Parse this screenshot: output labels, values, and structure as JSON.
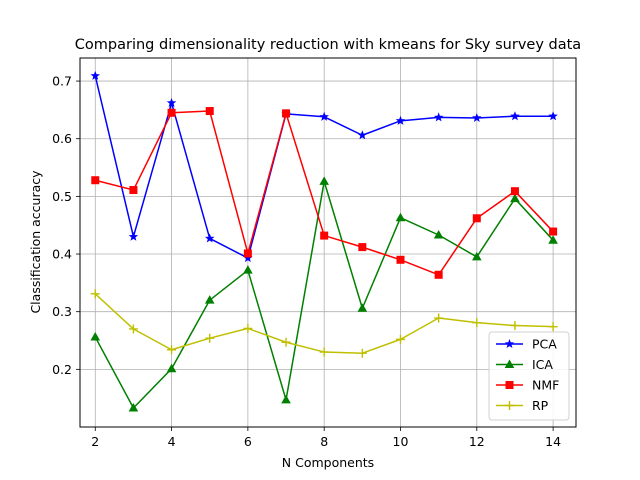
{
  "chart_data": {
    "type": "line",
    "title": "Comparing dimensionality reduction with kmeans for Sky survey data",
    "xlabel": "N Components",
    "ylabel": "Classification accuracy",
    "x": [
      2,
      3,
      4,
      5,
      6,
      7,
      8,
      9,
      10,
      11,
      12,
      13,
      14
    ],
    "xlim": [
      1.6,
      14.6
    ],
    "ylim": [
      0.1,
      0.74
    ],
    "xticks": [
      2,
      4,
      6,
      8,
      10,
      12,
      14
    ],
    "yticks": [
      0.2,
      0.3,
      0.4,
      0.5,
      0.6,
      0.7
    ],
    "grid": true,
    "legend_position": "lower-right",
    "series": [
      {
        "name": "PCA",
        "color": "#0000ff",
        "marker": "star",
        "values": [
          0.709,
          0.43,
          0.662,
          0.427,
          0.393,
          0.643,
          0.638,
          0.606,
          0.631,
          0.637,
          0.636,
          0.639,
          0.639
        ]
      },
      {
        "name": "ICA",
        "color": "#008000",
        "marker": "triangle",
        "values": [
          0.256,
          0.133,
          0.201,
          0.32,
          0.372,
          0.147,
          0.526,
          0.306,
          0.463,
          0.433,
          0.395,
          0.496,
          0.424
        ]
      },
      {
        "name": "NMF",
        "color": "#ff0000",
        "marker": "square",
        "values": [
          0.528,
          0.511,
          0.645,
          0.648,
          0.401,
          0.644,
          0.432,
          0.412,
          0.39,
          0.364,
          0.462,
          0.509,
          0.439
        ]
      },
      {
        "name": "RP",
        "color": "#bfbf00",
        "marker": "plus",
        "values": [
          0.331,
          0.27,
          0.234,
          0.254,
          0.271,
          0.247,
          0.23,
          0.228,
          0.252,
          0.289,
          0.281,
          0.276,
          0.274
        ]
      }
    ]
  }
}
